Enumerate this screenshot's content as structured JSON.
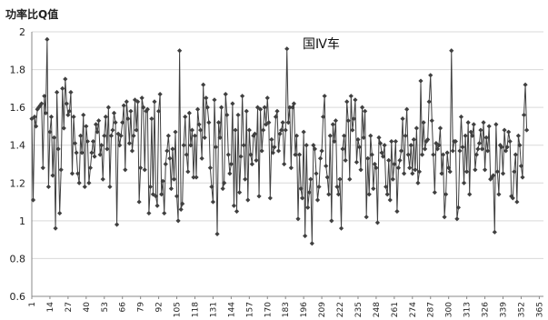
{
  "chart_data": {
    "type": "line",
    "title": "",
    "ylabel": "功率比Q值",
    "xlabel": "",
    "annotation": "国Ⅳ车",
    "ylim": [
      0.6,
      2.0
    ],
    "yticks": [
      "0.6",
      "0.8",
      "1",
      "1.2",
      "1.4",
      "1.6",
      "1.8",
      "2"
    ],
    "xticks": [
      "1",
      "14",
      "27",
      "40",
      "53",
      "66",
      "79",
      "92",
      "105",
      "118",
      "131",
      "144",
      "157",
      "170",
      "183",
      "196",
      "209",
      "222",
      "235",
      "248",
      "261",
      "274",
      "287",
      "300",
      "313",
      "326",
      "339",
      "352",
      "365"
    ],
    "xlim": [
      1,
      368
    ],
    "grid": "horizontal",
    "legend": "none",
    "line_color": "#404040",
    "marker_color": "#404040",
    "marker": "diamond",
    "series": [
      {
        "values": [
          1.54,
          1.11,
          1.55,
          1.5,
          1.59,
          1.6,
          1.61,
          1.62,
          1.28,
          1.66,
          1.57,
          1.96,
          1.18,
          1.47,
          1.55,
          1.24,
          1.44,
          0.96,
          1.68,
          1.38,
          1.04,
          1.27,
          1.7,
          1.49,
          1.75,
          1.62,
          1.56,
          1.58,
          1.68,
          1.25,
          1.55,
          1.41,
          1.36,
          1.25,
          1.2,
          1.45,
          1.36,
          1.56,
          1.18,
          1.5,
          1.42,
          1.2,
          1.28,
          1.36,
          1.42,
          1.34,
          1.51,
          1.47,
          1.53,
          1.35,
          1.4,
          1.22,
          1.45,
          1.55,
          1.38,
          1.6,
          1.18,
          1.45,
          1.48,
          1.57,
          1.52,
          0.98,
          1.46,
          1.4,
          1.45,
          1.52,
          1.61,
          1.27,
          1.63,
          1.54,
          1.41,
          1.58,
          1.37,
          1.45,
          1.64,
          1.48,
          1.63,
          1.1,
          1.28,
          1.65,
          1.6,
          1.27,
          1.58,
          1.59,
          1.04,
          1.18,
          1.54,
          1.14,
          1.63,
          1.13,
          1.08,
          1.58,
          1.67,
          1.14,
          1.21,
          1.04,
          1.3,
          1.37,
          1.45,
          1.33,
          1.17,
          1.38,
          1.22,
          1.47,
          1.13,
          1.0,
          1.9,
          1.06,
          1.09,
          1.4,
          1.55,
          1.35,
          1.26,
          1.57,
          1.4,
          1.48,
          1.23,
          1.45,
          1.23,
          1.59,
          1.51,
          1.48,
          1.33,
          1.72,
          1.44,
          1.65,
          1.6,
          1.52,
          1.28,
          1.18,
          1.1,
          1.64,
          1.39,
          0.93,
          1.52,
          1.44,
          1.6,
          1.17,
          1.2,
          1.67,
          1.56,
          1.35,
          1.25,
          1.3,
          1.62,
          1.08,
          1.48,
          1.05,
          1.56,
          1.15,
          1.34,
          1.66,
          1.4,
          1.22,
          1.58,
          1.11,
          1.48,
          1.35,
          1.3,
          1.45,
          1.46,
          1.32,
          1.6,
          1.13,
          1.59,
          1.37,
          1.48,
          1.6,
          1.51,
          1.65,
          1.52,
          1.12,
          1.43,
          1.36,
          1.39,
          1.55,
          1.58,
          1.37,
          1.46,
          1.48,
          1.52,
          1.3,
          1.48,
          1.91,
          1.52,
          1.6,
          1.28,
          1.6,
          1.62,
          1.35,
          1.45,
          1.01,
          1.35,
          1.17,
          1.12,
          1.47,
          0.92,
          1.4,
          1.07,
          1.15,
          1.22,
          0.88,
          1.4,
          1.38,
          1.25,
          1.11,
          1.18,
          1.33,
          1.37,
          1.55,
          1.66,
          1.29,
          1.23,
          1.14,
          1.45,
          1.0,
          1.51,
          1.42,
          1.53,
          1.18,
          1.14,
          1.22,
          0.96,
          1.38,
          1.45,
          1.32,
          1.63,
          1.53,
          1.22,
          1.66,
          1.48,
          1.54,
          1.64,
          1.31,
          1.43,
          1.39,
          1.27,
          1.6,
          1.44,
          1.58,
          1.02,
          1.33,
          1.14,
          1.45,
          1.35,
          1.17,
          1.3,
          1.28,
          0.99,
          1.44,
          1.41,
          1.36,
          1.34,
          1.4,
          1.18,
          1.14,
          1.32,
          1.11,
          1.42,
          1.22,
          1.3,
          1.42,
          1.05,
          1.28,
          1.32,
          1.37,
          1.54,
          1.25,
          1.45,
          1.59,
          1.35,
          1.28,
          1.4,
          1.25,
          1.43,
          1.27,
          1.49,
          1.2,
          1.26,
          1.74,
          1.35,
          1.52,
          1.38,
          1.42,
          1.43,
          1.63,
          1.77,
          1.53,
          1.35,
          1.15,
          1.41,
          1.38,
          1.4,
          1.49,
          1.25,
          1.35,
          1.02,
          1.14,
          1.36,
          1.28,
          1.26,
          1.9,
          1.37,
          1.42,
          1.42,
          1.01,
          1.07,
          1.37,
          1.55,
          1.39,
          1.2,
          1.45,
          1.26,
          1.52,
          1.14,
          1.47,
          1.45,
          1.51,
          1.27,
          1.35,
          1.38,
          1.41,
          1.48,
          1.38,
          1.52,
          1.27,
          1.44,
          1.37,
          1.5,
          1.22,
          1.23,
          1.24,
          0.94,
          1.51,
          1.26,
          1.14,
          1.4,
          1.39,
          1.25,
          1.48,
          1.37,
          1.39,
          1.47,
          1.42,
          1.13,
          1.12,
          1.26,
          1.35,
          1.1,
          1.45,
          1.4,
          1.29,
          1.23,
          1.56,
          1.72,
          1.48
        ]
      }
    ]
  }
}
